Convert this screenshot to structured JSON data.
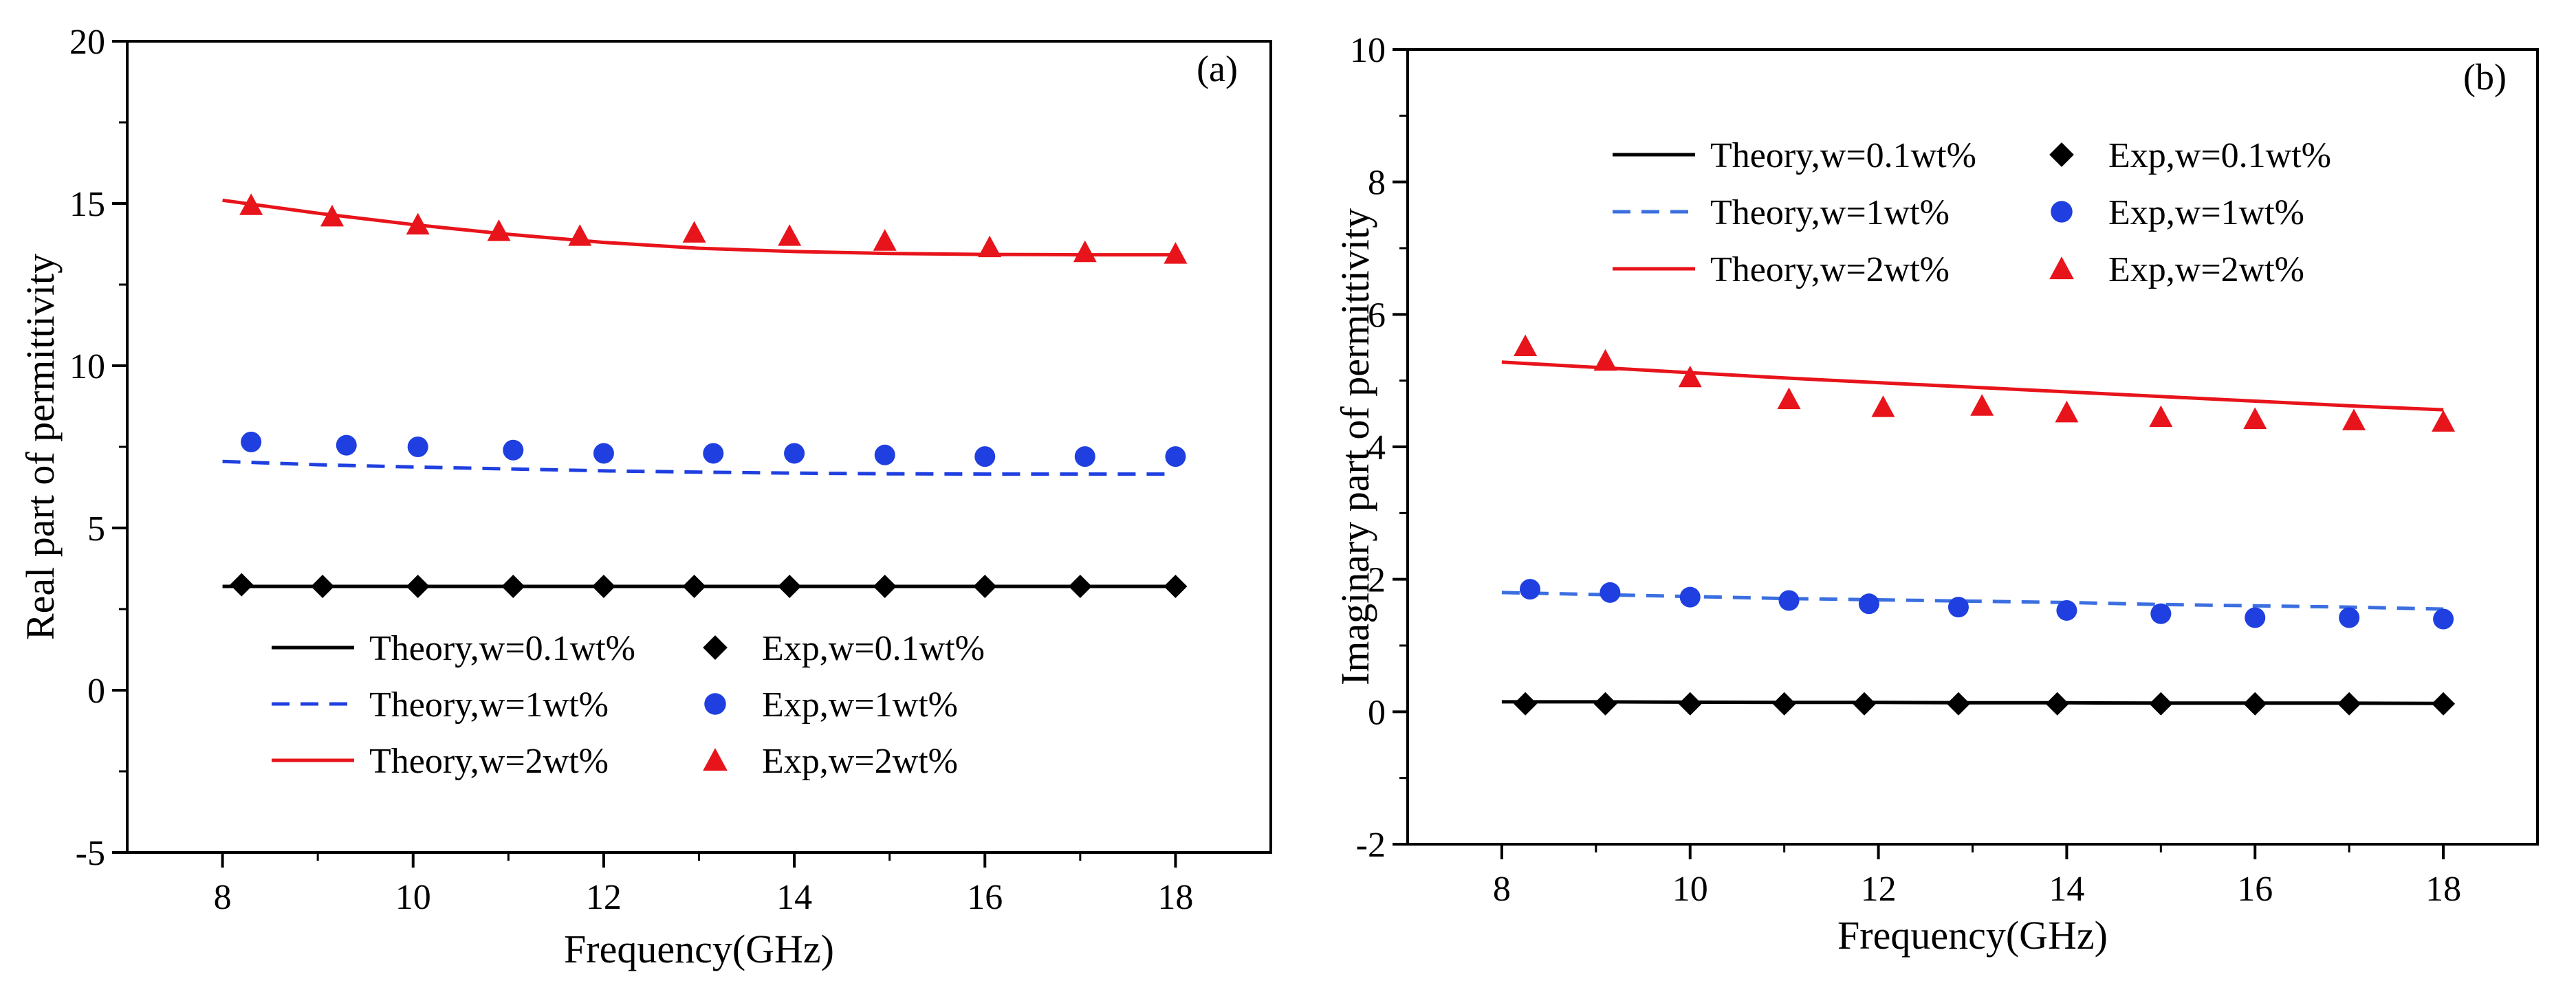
{
  "chart_data": [
    {
      "type": "line",
      "panel_label": "(a)",
      "xlabel": "Frequency(GHz)",
      "ylabel": "Real part of permittivity",
      "xlim": [
        7,
        19
      ],
      "ylim": [
        -5,
        20
      ],
      "xticks": [
        8,
        10,
        12,
        14,
        16,
        18
      ],
      "yticks": [
        -5,
        0,
        5,
        10,
        15,
        20
      ],
      "grid": false,
      "legend_position": "bottom-left",
      "series": [
        {
          "name": "Theory,w=0.1wt%",
          "kind": "line",
          "style": "solid",
          "color": "#000000",
          "x": [
            8,
            9,
            10,
            11,
            12,
            13,
            14,
            15,
            16,
            17,
            18
          ],
          "y": [
            3.2,
            3.2,
            3.2,
            3.2,
            3.2,
            3.2,
            3.2,
            3.2,
            3.2,
            3.2,
            3.2
          ]
        },
        {
          "name": "Theory,w=1wt%",
          "kind": "line",
          "style": "dashed",
          "color": "#1f3fe0",
          "x": [
            8,
            9,
            10,
            11,
            12,
            13,
            14,
            15,
            16,
            17,
            18
          ],
          "y": [
            7.05,
            6.95,
            6.88,
            6.82,
            6.76,
            6.72,
            6.69,
            6.67,
            6.66,
            6.66,
            6.66
          ]
        },
        {
          "name": "Theory,w=2wt%",
          "kind": "line",
          "style": "solid",
          "color": "#e8141b",
          "x": [
            8,
            9,
            10,
            11,
            12,
            13,
            14,
            15,
            16,
            17,
            18
          ],
          "y": [
            15.1,
            14.7,
            14.35,
            14.05,
            13.8,
            13.62,
            13.52,
            13.46,
            13.43,
            13.42,
            13.42
          ]
        },
        {
          "name": "Exp,w=0.1wt%",
          "kind": "scatter",
          "marker": "diamond",
          "color": "#000000",
          "x": [
            8.2,
            9.05,
            10.05,
            11.05,
            12.0,
            12.95,
            13.95,
            14.95,
            16.0,
            17.0,
            18.0
          ],
          "y": [
            3.25,
            3.2,
            3.2,
            3.2,
            3.2,
            3.2,
            3.2,
            3.2,
            3.2,
            3.2,
            3.2
          ]
        },
        {
          "name": "Exp,w=1wt%",
          "kind": "scatter",
          "marker": "circle",
          "color": "#1f3fe0",
          "x": [
            8.3,
            9.3,
            10.05,
            11.05,
            12.0,
            13.15,
            14.0,
            14.95,
            16.0,
            17.05,
            18.0
          ],
          "y": [
            7.65,
            7.55,
            7.5,
            7.4,
            7.3,
            7.3,
            7.3,
            7.25,
            7.2,
            7.2,
            7.2
          ]
        },
        {
          "name": "Exp,w=2wt%",
          "kind": "scatter",
          "marker": "triangle",
          "color": "#e8141b",
          "x": [
            8.3,
            9.15,
            10.05,
            10.9,
            11.75,
            12.95,
            13.95,
            14.95,
            16.05,
            17.05,
            18.0
          ],
          "y": [
            14.95,
            14.6,
            14.35,
            14.15,
            14.0,
            14.1,
            14.0,
            13.85,
            13.65,
            13.5,
            13.45
          ]
        }
      ]
    },
    {
      "type": "line",
      "panel_label": "(b)",
      "xlabel": "Frequency(GHz)",
      "ylabel": "Imaginary part of permittivity",
      "xlim": [
        7,
        19
      ],
      "ylim": [
        -2,
        10
      ],
      "xticks": [
        8,
        10,
        12,
        14,
        16,
        18
      ],
      "yticks": [
        -2,
        0,
        2,
        4,
        6,
        8,
        10
      ],
      "grid": false,
      "legend_position": "top-left",
      "series": [
        {
          "name": "Theory,w=0.1wt%",
          "kind": "line",
          "style": "solid",
          "color": "#000000",
          "x": [
            8,
            9,
            10,
            11,
            12,
            13,
            14,
            15,
            16,
            17,
            18
          ],
          "y": [
            0.15,
            0.15,
            0.145,
            0.14,
            0.14,
            0.135,
            0.135,
            0.13,
            0.13,
            0.13,
            0.125
          ]
        },
        {
          "name": "Theory,w=1wt%",
          "kind": "line",
          "style": "dashed",
          "color": "#3b6fe0",
          "x": [
            8,
            9,
            10,
            11,
            12,
            13,
            14,
            15,
            16,
            17,
            18
          ],
          "y": [
            1.8,
            1.77,
            1.74,
            1.71,
            1.69,
            1.67,
            1.65,
            1.62,
            1.6,
            1.58,
            1.55
          ]
        },
        {
          "name": "Theory,w=2wt%",
          "kind": "line",
          "style": "solid",
          "color": "#e8141b",
          "x": [
            8,
            9,
            10,
            11,
            12,
            13,
            14,
            15,
            16,
            17,
            18
          ],
          "y": [
            5.28,
            5.2,
            5.12,
            5.04,
            4.97,
            4.9,
            4.83,
            4.76,
            4.69,
            4.62,
            4.56
          ]
        },
        {
          "name": "Exp,w=0.1wt%",
          "kind": "scatter",
          "marker": "diamond",
          "color": "#000000",
          "x": [
            8.25,
            9.1,
            10.0,
            11.0,
            11.85,
            12.85,
            13.9,
            15.0,
            16.0,
            17.0,
            18.0
          ],
          "y": [
            0.12,
            0.12,
            0.12,
            0.12,
            0.12,
            0.12,
            0.12,
            0.12,
            0.12,
            0.12,
            0.12
          ]
        },
        {
          "name": "Exp,w=1wt%",
          "kind": "scatter",
          "marker": "circle",
          "color": "#1f3fe0",
          "x": [
            8.3,
            9.15,
            10.0,
            11.05,
            11.9,
            12.85,
            14.0,
            15.0,
            16.0,
            17.0,
            18.0
          ],
          "y": [
            1.85,
            1.8,
            1.73,
            1.68,
            1.63,
            1.58,
            1.53,
            1.48,
            1.42,
            1.42,
            1.4
          ]
        },
        {
          "name": "Exp,w=2wt%",
          "kind": "scatter",
          "marker": "triangle",
          "color": "#e8141b",
          "x": [
            8.25,
            9.1,
            10.0,
            11.05,
            12.05,
            13.1,
            14.0,
            15.0,
            16.0,
            17.05,
            18.0
          ],
          "y": [
            5.52,
            5.3,
            5.05,
            4.72,
            4.6,
            4.62,
            4.52,
            4.45,
            4.42,
            4.4,
            4.38
          ]
        }
      ]
    }
  ]
}
